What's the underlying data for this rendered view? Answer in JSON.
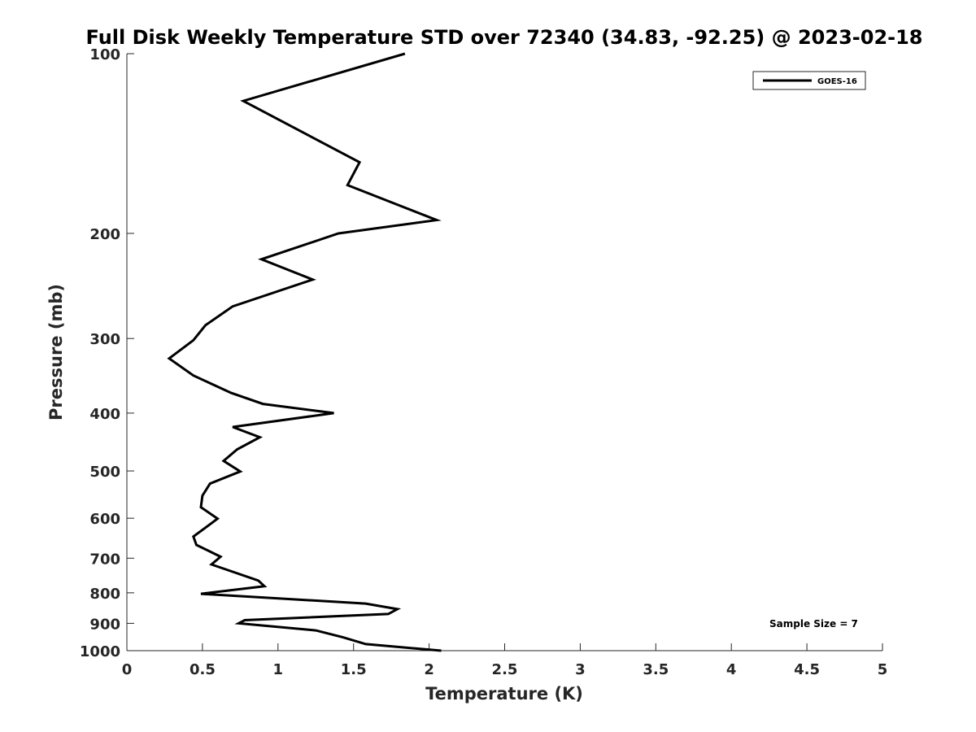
{
  "chart_data": {
    "type": "line",
    "title": "Full Disk Weekly Temperature STD over 72340 (34.83, -92.25) @ 2023-02-18",
    "xlabel": "Temperature (K)",
    "ylabel": "Pressure (mb)",
    "xlim": [
      0,
      5
    ],
    "ylim": [
      100,
      1000
    ],
    "y_scale": "log",
    "y_reversed": true,
    "x_ticks": [
      "0",
      "0.5",
      "1",
      "1.5",
      "2",
      "2.5",
      "3",
      "3.5",
      "4",
      "4.5",
      "5"
    ],
    "x_tick_values": [
      0,
      0.5,
      1,
      1.5,
      2,
      2.5,
      3,
      3.5,
      4,
      4.5,
      5
    ],
    "y_ticks": [
      "100",
      "200",
      "300",
      "400",
      "500",
      "600",
      "700",
      "800",
      "900",
      "1000"
    ],
    "y_tick_values": [
      100,
      200,
      300,
      400,
      500,
      600,
      700,
      800,
      900,
      1000
    ],
    "grid": false,
    "legend_position": "top-right",
    "annotation": "Sample Size = 7",
    "series": [
      {
        "name": "GOES-16",
        "color": "#000000",
        "temperature": [
          1.84,
          0.77,
          1.54,
          1.46,
          2.05,
          1.4,
          0.89,
          1.23,
          0.7,
          0.52,
          0.44,
          0.28,
          0.44,
          0.69,
          0.9,
          1.37,
          0.7,
          0.88,
          0.73,
          0.64,
          0.75,
          0.55,
          0.5,
          0.49,
          0.6,
          0.44,
          0.46,
          0.62,
          0.56,
          0.87,
          0.91,
          0.49,
          1.58,
          1.79,
          1.73,
          0.78,
          0.74,
          1.25,
          1.43,
          1.58,
          2.08
        ],
        "pressure": [
          100,
          120,
          152,
          166,
          190,
          200,
          221,
          239,
          265,
          285,
          302,
          324,
          346,
          370,
          386,
          400,
          422,
          439,
          460,
          481,
          501,
          525,
          550,
          575,
          601,
          644,
          665,
          696,
          717,
          763,
          780,
          803,
          834,
          852,
          868,
          889,
          900,
          925,
          950,
          975,
          1000
        ]
      }
    ]
  }
}
